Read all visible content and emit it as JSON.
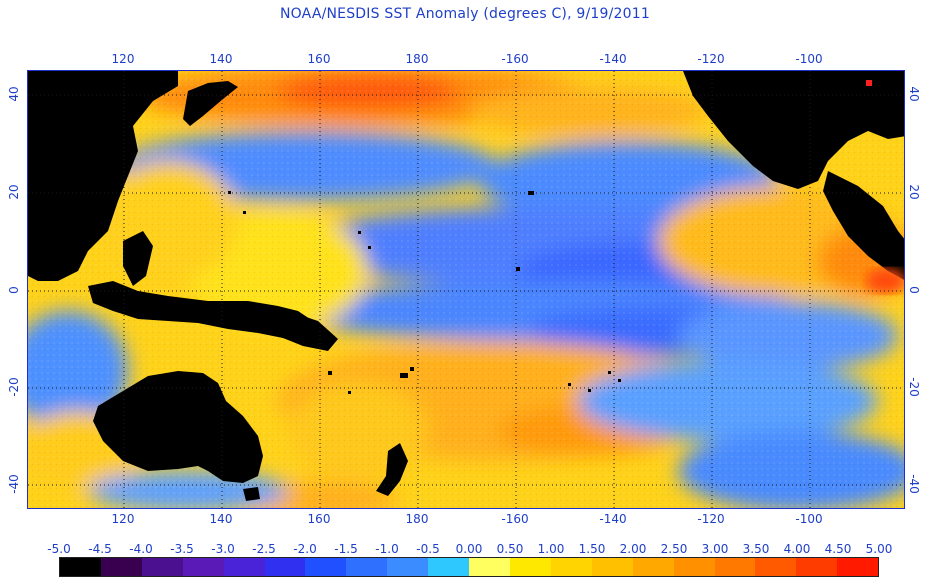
{
  "title": "NOAA/NESDIS SST Anomaly (degrees C), 9/19/2011",
  "map": {
    "longitude_ticks": [
      "120",
      "140",
      "160",
      "180",
      "-160",
      "-140",
      "-120",
      "-100"
    ],
    "latitude_ticks": [
      "40",
      "20",
      "0",
      "-20",
      "-40"
    ],
    "grid": "dotted",
    "colors": {
      "frame": "#2030d0",
      "grid": "#1a1a1a",
      "land": "#000000"
    }
  },
  "legend": {
    "labels": [
      "-5.0",
      "-4.5",
      "-4.0",
      "-3.5",
      "-3.0",
      "-2.5",
      "-2.0",
      "-1.5",
      "-1.0",
      "-0.5",
      "0.00",
      "0.50",
      "1.00",
      "1.50",
      "2.00",
      "2.50",
      "3.00",
      "3.50",
      "4.00",
      "4.50",
      "5.00"
    ],
    "colors": [
      "#000000",
      "#3a0050",
      "#4a1090",
      "#5a1ab8",
      "#4a22d8",
      "#3030f0",
      "#2050ff",
      "#3070ff",
      "#3a8cff",
      "#2ec8ff",
      "#ffff60",
      "#ffe800",
      "#ffd400",
      "#ffc000",
      "#ffa800",
      "#ff9000",
      "#ff7800",
      "#ff5a00",
      "#ff3c00",
      "#ff1a00"
    ]
  }
}
